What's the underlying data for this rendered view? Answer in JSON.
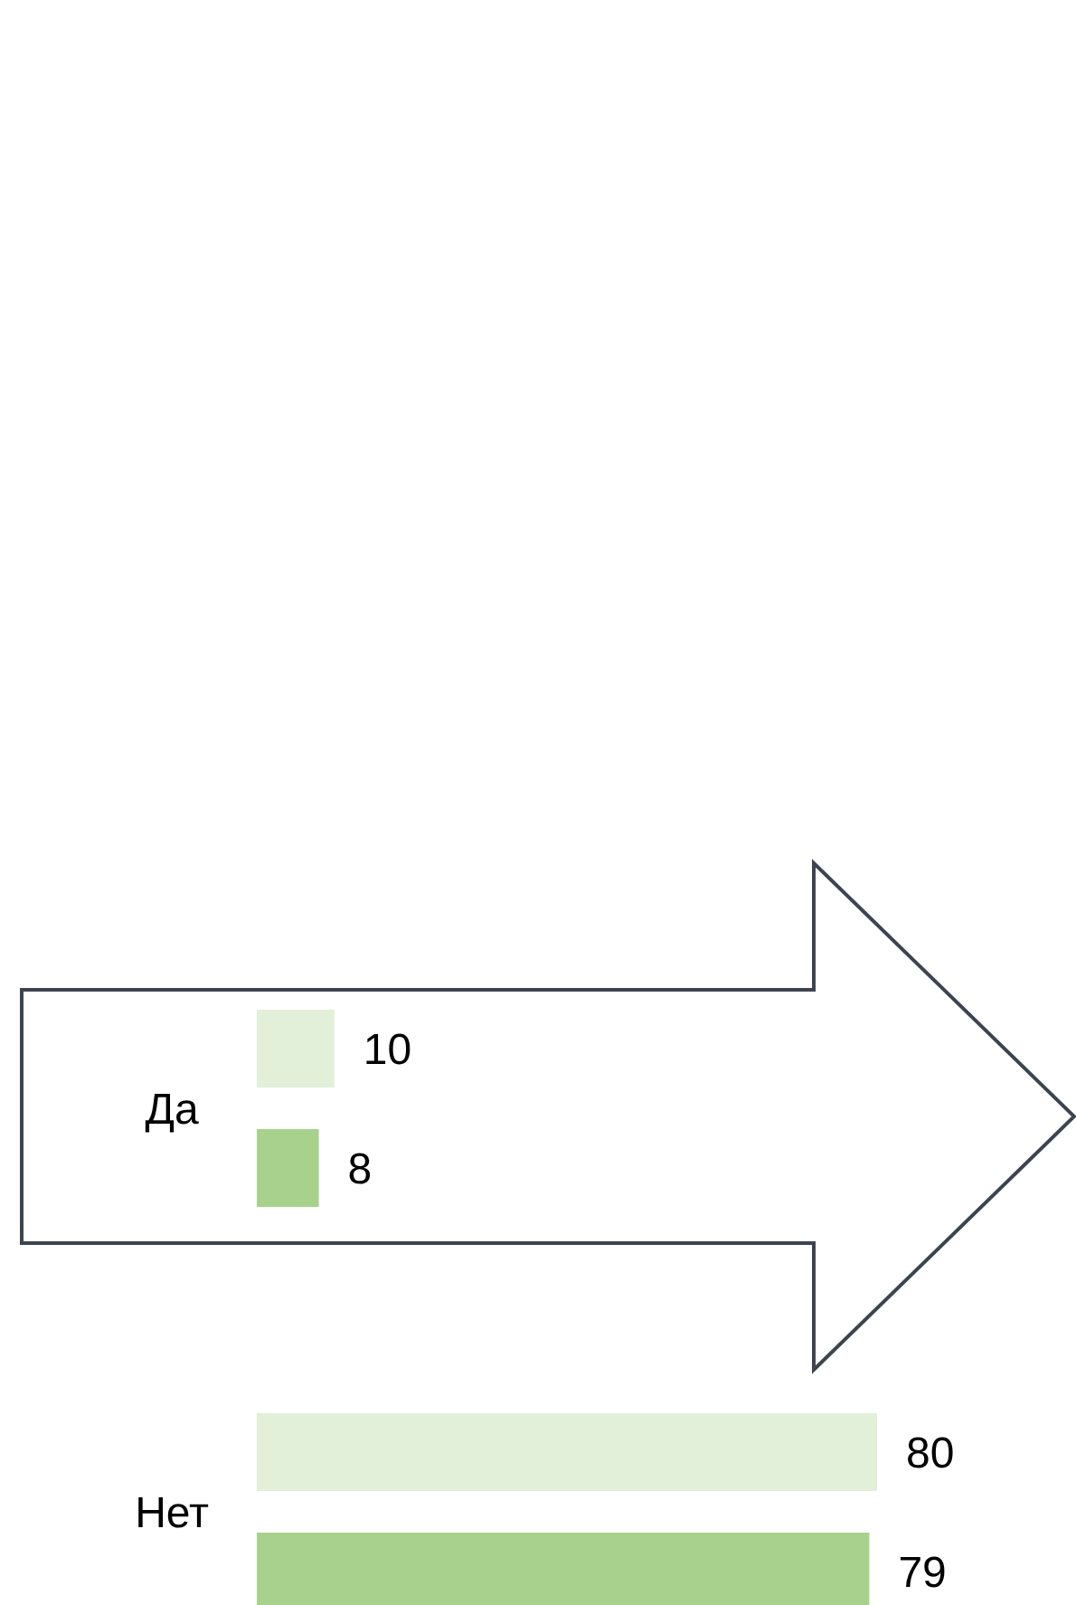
{
  "chart_data": {
    "type": "bar",
    "orientation": "horizontal",
    "categories": [
      "Да",
      "Нет"
    ],
    "data_labels": true,
    "series": [
      {
        "color": "#e2efd9",
        "values": [
          10,
          80
        ]
      },
      {
        "color": "#a9d18e",
        "values": [
          8,
          79
        ]
      }
    ]
  }
}
